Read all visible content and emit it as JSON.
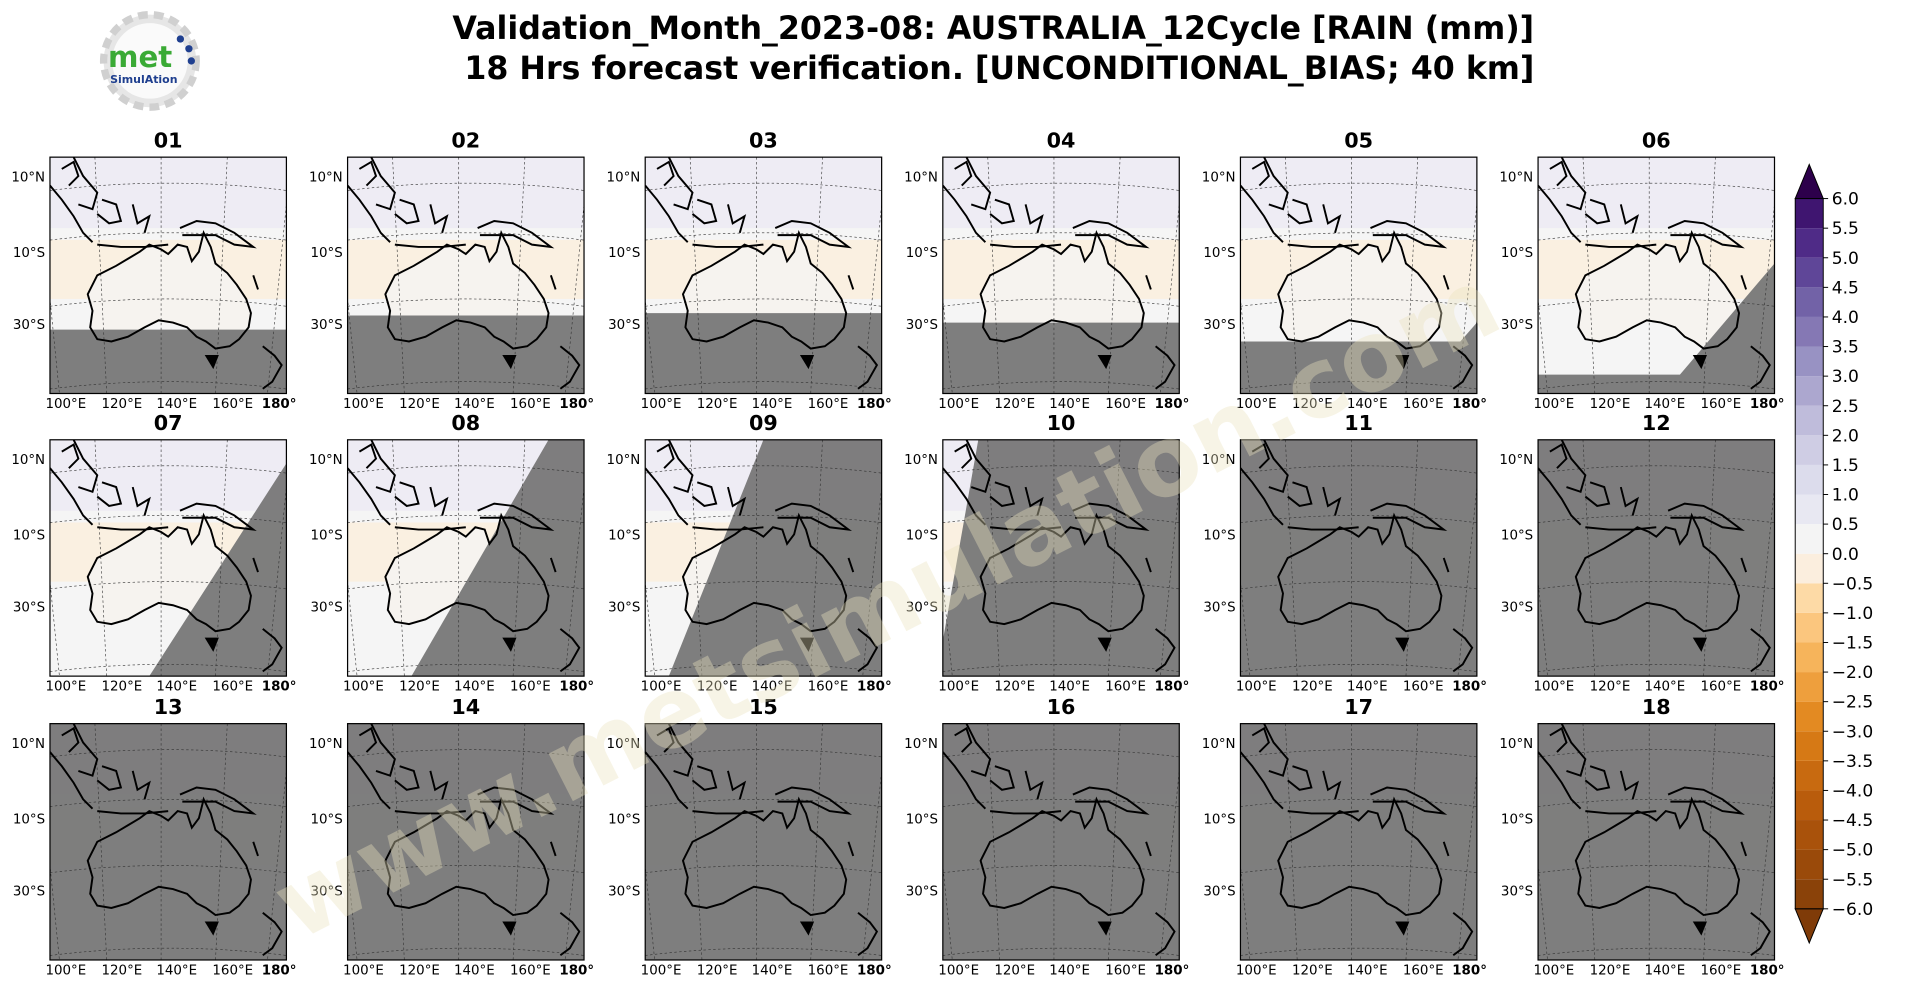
{
  "header": {
    "title_lines": [
      "Validation_Month_2023-08: AUSTRALIA_12Cycle [RAIN (mm)]",
      "18 Hrs forecast verification. [UNCONDITIONAL_BIAS; 40 km]"
    ],
    "logo_text": [
      "met",
      "SimulAtion"
    ],
    "watermark": "www.metsimulation.com"
  },
  "panel_labels": [
    "01",
    "02",
    "03",
    "04",
    "05",
    "06",
    "07",
    "08",
    "09",
    "10",
    "11",
    "12",
    "13",
    "14",
    "15",
    "16",
    "17",
    "18"
  ],
  "map": {
    "lat_labels": [
      "10°N",
      "10°S",
      "30°S"
    ],
    "lon_labels": [
      "100°E",
      "120°E",
      "140°E",
      "160°E",
      "180°"
    ]
  },
  "colorbar": {
    "ticks": [
      {
        "value": 6,
        "label": "6.0"
      },
      {
        "value": 5.5,
        "label": "5.5"
      },
      {
        "value": 5,
        "label": "5.0"
      },
      {
        "value": 4.5,
        "label": "4.5"
      },
      {
        "value": 4,
        "label": "4.0"
      },
      {
        "value": 3.5,
        "label": "3.5"
      },
      {
        "value": 3,
        "label": "3.0"
      },
      {
        "value": 2.5,
        "label": "2.5"
      },
      {
        "value": 2,
        "label": "2.0"
      },
      {
        "value": 1.5,
        "label": "1.5"
      },
      {
        "value": 1,
        "label": "1.0"
      },
      {
        "value": 0.5,
        "label": "0.5"
      },
      {
        "value": 0,
        "label": "0.0"
      },
      {
        "value": -0.5,
        "label": "−0.5"
      },
      {
        "value": -1,
        "label": "−1.0"
      },
      {
        "value": -1.5,
        "label": "−1.5"
      },
      {
        "value": -2,
        "label": "−2.0"
      },
      {
        "value": -2.5,
        "label": "−2.5"
      },
      {
        "value": -3,
        "label": "−3.0"
      },
      {
        "value": -3.5,
        "label": "−3.5"
      },
      {
        "value": -4,
        "label": "−4.0"
      },
      {
        "value": -4.5,
        "label": "−4.5"
      },
      {
        "value": -5,
        "label": "−5.0"
      },
      {
        "value": -5.5,
        "label": "−5.5"
      },
      {
        "value": -6,
        "label": "−6.0"
      }
    ],
    "colors": [
      "#8a4209",
      "#9a4a0a",
      "#a9520b",
      "#b95c0c",
      "#c86a10",
      "#d67915",
      "#e38a22",
      "#ee9f3d",
      "#f6b45b",
      "#fbc67e",
      "#fddaa6",
      "#fbeede",
      "#f4f4f4",
      "#e8e8f2",
      "#dcdcec",
      "#cfcde4",
      "#bfbcdb",
      "#aca7cf",
      "#9892c3",
      "#8578b4",
      "#7262a7",
      "#5f4698",
      "#4f2b87",
      "#3f1570"
    ],
    "under_color": "#7f3b08",
    "over_color": "#2d004b"
  }
}
